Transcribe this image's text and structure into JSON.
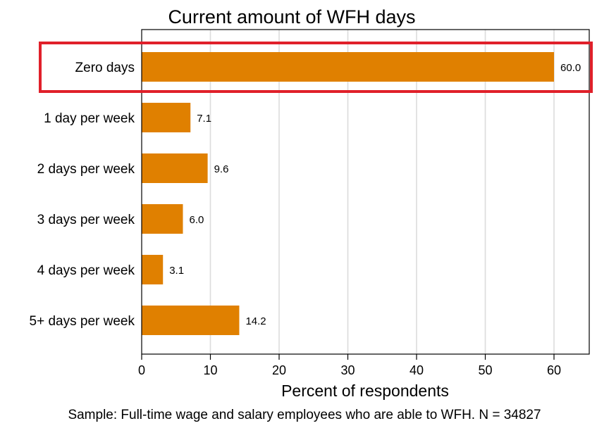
{
  "chart_data": {
    "type": "bar",
    "orientation": "horizontal",
    "title": "Current amount of WFH days",
    "xlabel": "Percent of respondents",
    "ylabel": "",
    "caption": "Sample: Full-time wage and salary employees who are able to WFH. N = 34827",
    "categories": [
      "Zero days",
      "1 day per week",
      "2 days per week",
      "3 days per week",
      "4 days per week",
      "5+ days per week"
    ],
    "values": [
      60.0,
      7.1,
      9.6,
      6.0,
      3.1,
      14.2
    ],
    "value_labels": [
      "60.0",
      "7.1",
      "9.6",
      "6.0",
      "3.1",
      "14.2"
    ],
    "xlim": [
      0,
      65
    ],
    "xticks": [
      0,
      10,
      20,
      30,
      40,
      50,
      60
    ],
    "grid": true,
    "highlighted_category": "Zero days",
    "colors": {
      "bar": "#E08000",
      "highlight_box": "#E0202A",
      "grid": "#dcdcdc",
      "axis": "#000000"
    }
  }
}
